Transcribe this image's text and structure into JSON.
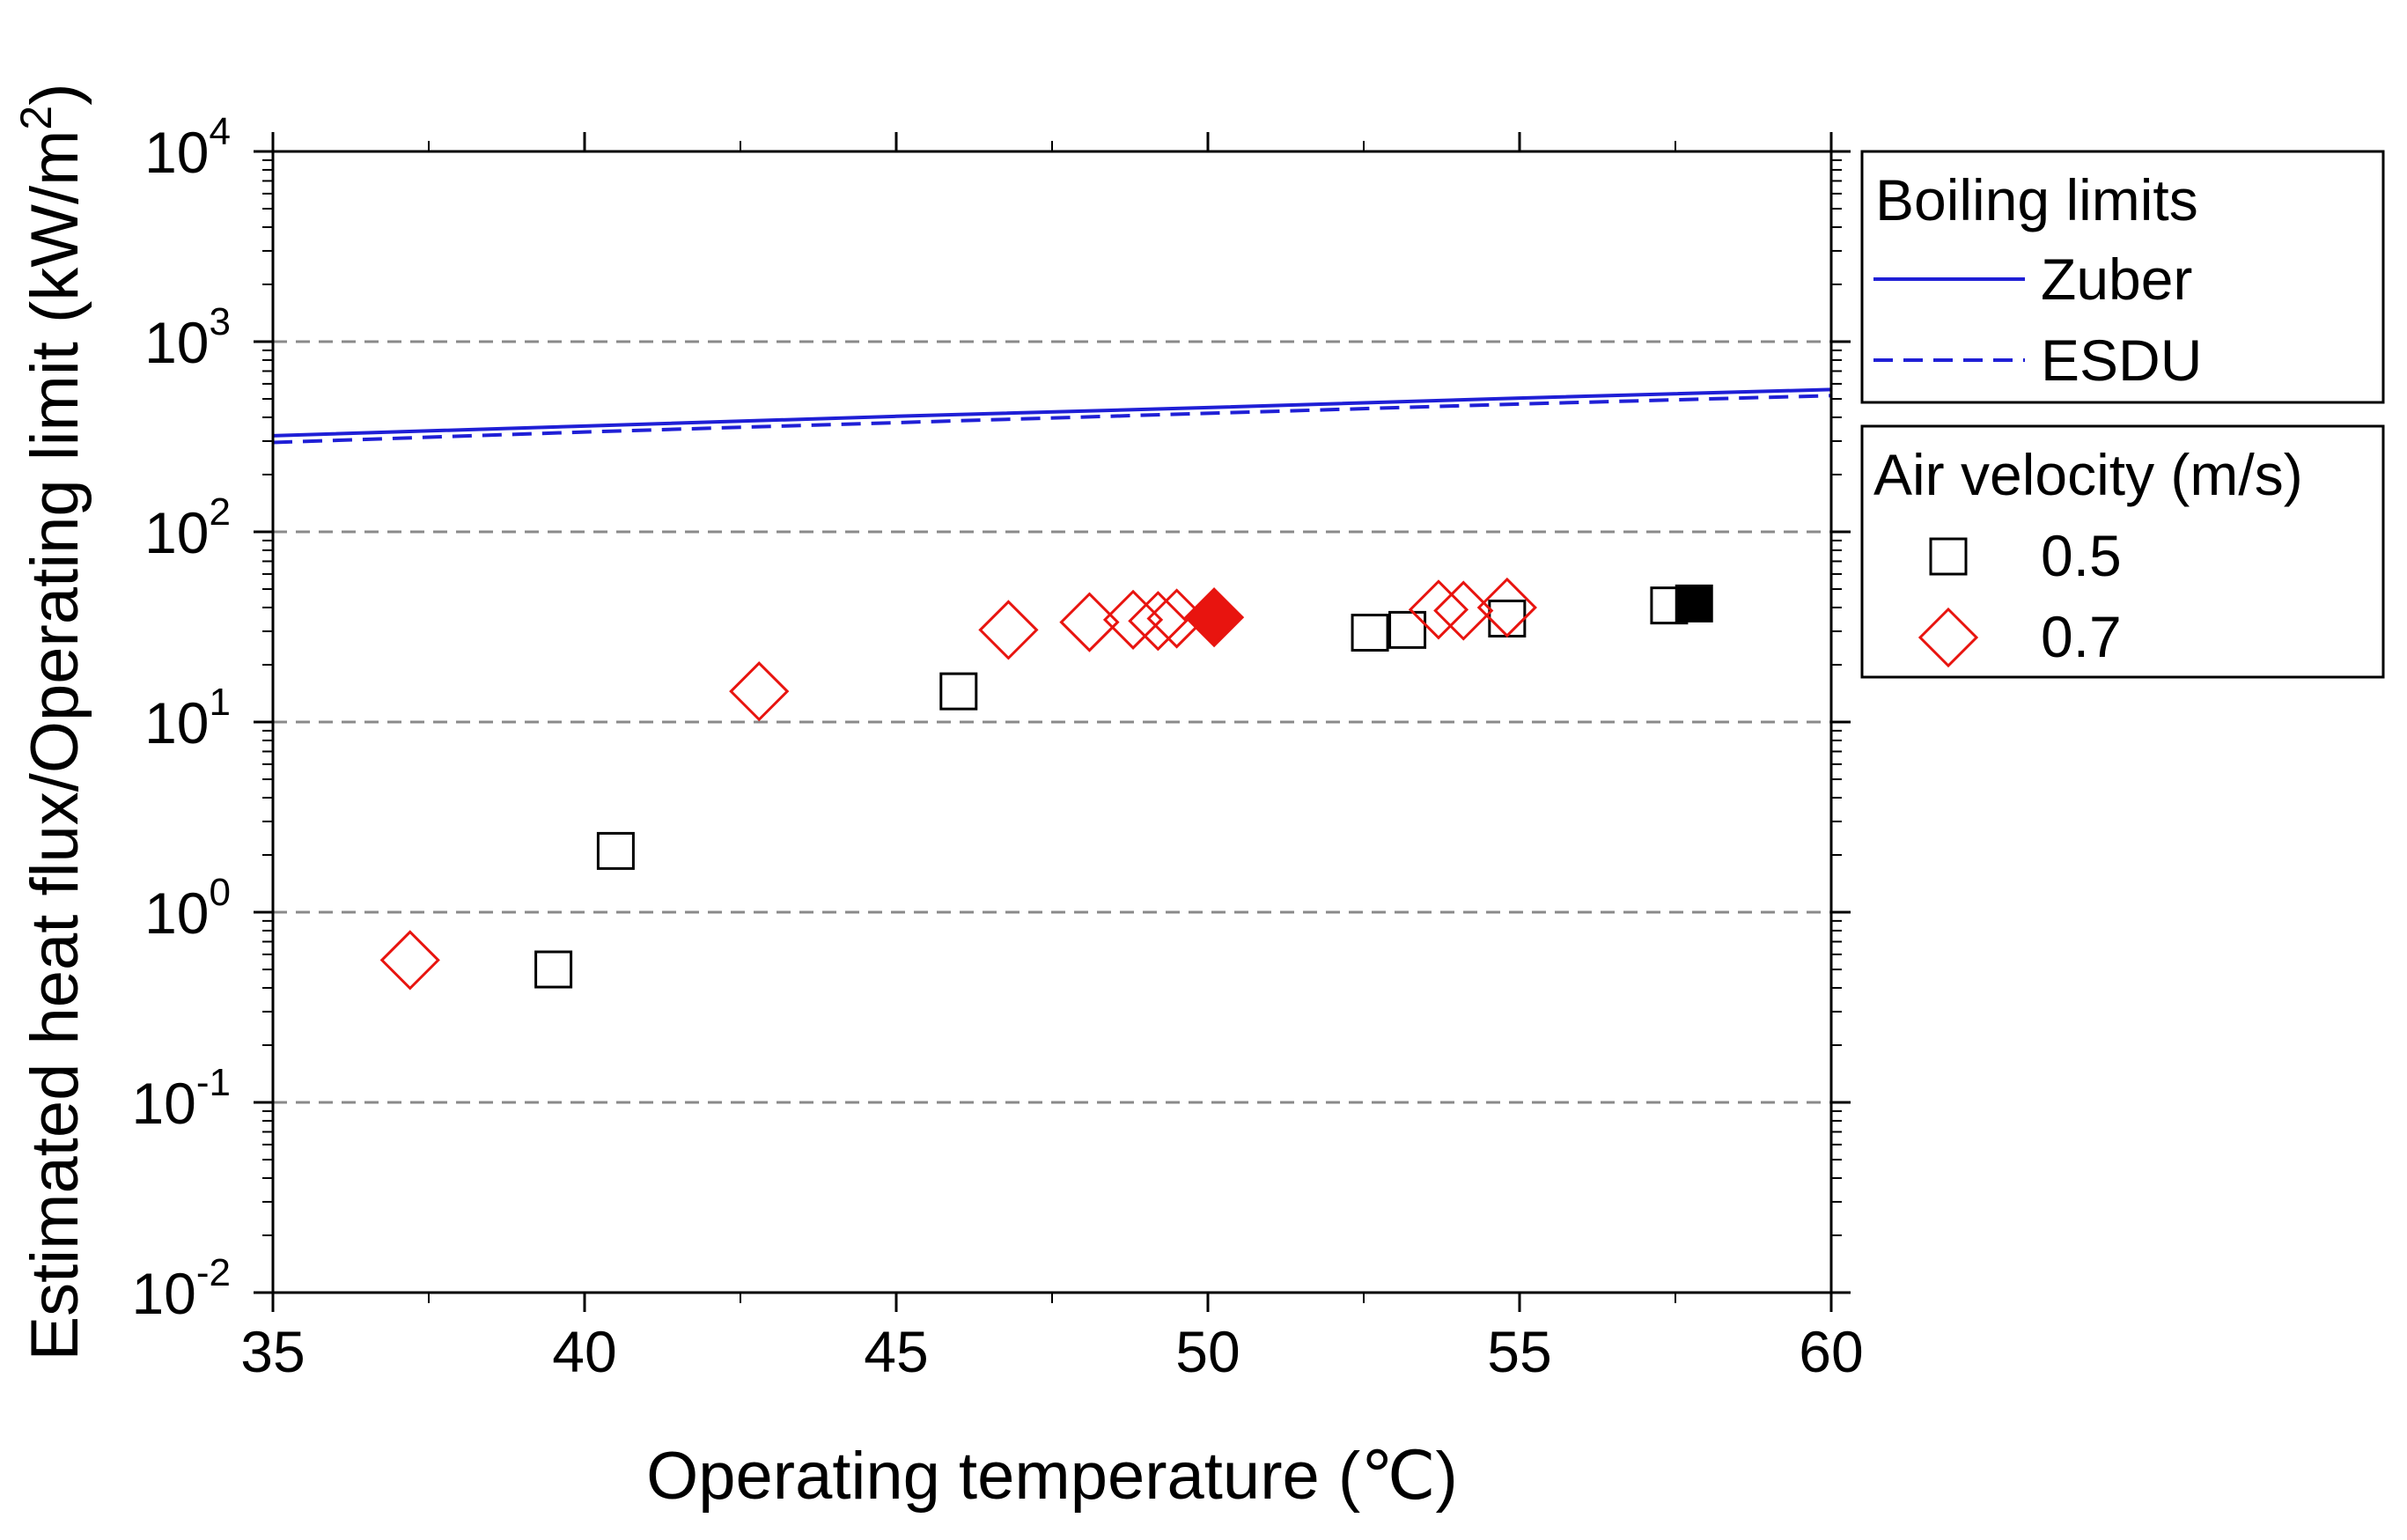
{
  "chart_data": {
    "type": "scatter",
    "xlabel": "Operating temperature (℃)",
    "ylabel": "Estimated heat flux/Operating limit (kW/m",
    "ylabel_sup": "2",
    "ylabel_close": ")",
    "x_range": [
      35,
      60
    ],
    "y_range_log10": [
      -2,
      4
    ],
    "y_scale": "log",
    "x_ticks": [
      "35",
      "40",
      "45",
      "50",
      "55",
      "60"
    ],
    "x_tick_values": [
      35,
      40,
      45,
      50,
      55,
      60
    ],
    "y_ticks": [
      {
        "base": "10",
        "exp": "-2",
        "value": -2
      },
      {
        "base": "10",
        "exp": "-1",
        "value": -1
      },
      {
        "base": "10",
        "exp": "0",
        "value": 0
      },
      {
        "base": "10",
        "exp": "1",
        "value": 1
      },
      {
        "base": "10",
        "exp": "2",
        "value": 2
      },
      {
        "base": "10",
        "exp": "3",
        "value": 3
      },
      {
        "base": "10",
        "exp": "4",
        "value": 4
      }
    ],
    "grid": "horizontal dashed at major ticks",
    "lines": [
      {
        "name": "Zuber",
        "style": "solid",
        "color": "#1f1fd6",
        "x": [
          35,
          40,
          45,
          50,
          55,
          60
        ],
        "y": [
          320,
          360,
          405,
          450,
          505,
          560
        ]
      },
      {
        "name": "ESDU",
        "style": "dashed",
        "color": "#1f1fd6",
        "x": [
          35,
          40,
          45,
          50,
          55,
          60
        ],
        "y": [
          295,
          335,
          375,
          420,
          470,
          520
        ]
      }
    ],
    "series": [
      {
        "name": "0.5",
        "marker": "square",
        "color": "#000000",
        "points": [
          {
            "x": 39.5,
            "y": 0.5,
            "filled": false
          },
          {
            "x": 40.5,
            "y": 2.1,
            "filled": false
          },
          {
            "x": 46.0,
            "y": 14.5,
            "filled": false
          },
          {
            "x": 52.6,
            "y": 29.5,
            "filled": false
          },
          {
            "x": 53.2,
            "y": 30.5,
            "filled": false
          },
          {
            "x": 54.8,
            "y": 35.0,
            "filled": false
          },
          {
            "x": 57.4,
            "y": 41.0,
            "filled": false
          },
          {
            "x": 57.8,
            "y": 42.0,
            "filled": true
          }
        ]
      },
      {
        "name": "0.7",
        "marker": "diamond",
        "color": "#e8140f",
        "points": [
          {
            "x": 37.2,
            "y": 0.56,
            "filled": false
          },
          {
            "x": 42.8,
            "y": 14.5,
            "filled": false
          },
          {
            "x": 46.8,
            "y": 30.5,
            "filled": false
          },
          {
            "x": 48.1,
            "y": 33.5,
            "filled": false
          },
          {
            "x": 48.8,
            "y": 34.5,
            "filled": false
          },
          {
            "x": 49.2,
            "y": 34.0,
            "filled": false
          },
          {
            "x": 49.5,
            "y": 35.0,
            "filled": false
          },
          {
            "x": 50.1,
            "y": 35.5,
            "filled": true
          },
          {
            "x": 53.7,
            "y": 39.0,
            "filled": false
          },
          {
            "x": 54.1,
            "y": 38.5,
            "filled": false
          },
          {
            "x": 54.8,
            "y": 40.0,
            "filled": false
          }
        ]
      }
    ],
    "legends": [
      {
        "title": "Boiling limits",
        "entries": [
          "Zuber",
          "ESDU"
        ]
      },
      {
        "title": "Air velocity (m/s)",
        "entries": [
          "0.5",
          "0.7"
        ]
      }
    ],
    "legend_placement": "right, outside plot area"
  }
}
